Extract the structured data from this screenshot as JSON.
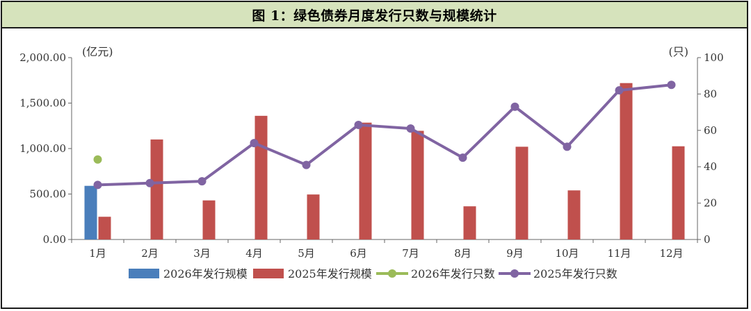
{
  "title": "图 1：绿色债券月度发行只数与规模统计",
  "colors": {
    "bar_2026": "#4a7ebb",
    "bar_2025": "#c0504d",
    "line_2026": "#9bbb59",
    "line_2025": "#8064a2",
    "title_bg": "#d6e3bc"
  },
  "chart_data": {
    "type": "bar+line",
    "categories": [
      "1月",
      "2月",
      "3月",
      "4月",
      "5月",
      "6月",
      "7月",
      "8月",
      "9月",
      "10月",
      "11月",
      "12月"
    ],
    "left_axis": {
      "unit": "(亿元)",
      "ylim": [
        0,
        2000
      ],
      "ticks": [
        0,
        500,
        1000,
        1500,
        2000
      ],
      "tick_labels": [
        "0.00",
        "500.00",
        "1,000.00",
        "1,500.00",
        "2,000.00"
      ]
    },
    "right_axis": {
      "unit": "(只)",
      "ylim": [
        0,
        100
      ],
      "ticks": [
        0,
        20,
        40,
        60,
        80,
        100
      ],
      "tick_labels": [
        "0",
        "20",
        "40",
        "60",
        "80",
        "100"
      ]
    },
    "series": [
      {
        "name": "2026年发行规模",
        "kind": "bar",
        "axis": "left",
        "values": [
          590,
          null,
          null,
          null,
          null,
          null,
          null,
          null,
          null,
          null,
          null,
          null
        ]
      },
      {
        "name": "2025年发行规模",
        "kind": "bar",
        "axis": "left",
        "values": [
          250,
          1100,
          430,
          1360,
          495,
          1285,
          1195,
          365,
          1020,
          540,
          1720,
          1025
        ]
      },
      {
        "name": "2026年发行只数",
        "kind": "line",
        "axis": "right",
        "values": [
          44,
          null,
          null,
          null,
          null,
          null,
          null,
          null,
          null,
          null,
          null,
          null
        ]
      },
      {
        "name": "2025年发行只数",
        "kind": "line",
        "axis": "right",
        "values": [
          30,
          31,
          32,
          53,
          41,
          63,
          61,
          45,
          73,
          51,
          82,
          85
        ]
      }
    ],
    "grid": false,
    "legend_position": "bottom"
  }
}
